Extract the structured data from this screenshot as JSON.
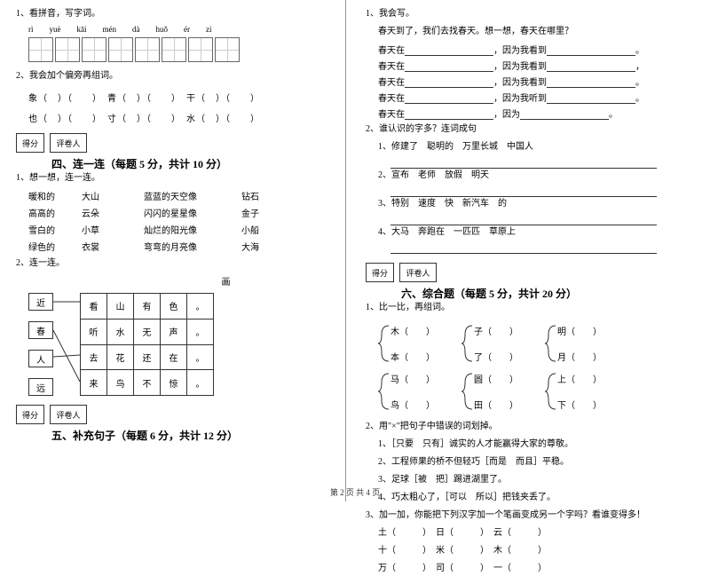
{
  "left": {
    "q1": "1、看拼音，写字词。",
    "pinyin": [
      "rì",
      "yuè",
      "kāi",
      "mén",
      "dà",
      "huǒ",
      "ér",
      "zi"
    ],
    "q2": "2、我会加个偏旁再组词。",
    "radicals_row1": "象（　）（　　）　青（　）（　　）　干（　）（　　）",
    "radicals_row2": "也（　）（　　）　寸（　）（　　）　水（　）（　　）",
    "score_label1": "得分",
    "score_label2": "评卷人",
    "section4": "四、连一连（每题 5 分，共计 10 分）",
    "s4q1": "1、想一想，连一连。",
    "link_rows": [
      [
        "暖和的",
        "大山",
        "蓝蓝的天空像",
        "钻石"
      ],
      [
        "高高的",
        "云朵",
        "闪闪的星星像",
        "金子"
      ],
      [
        "雪白的",
        "小草",
        "灿烂的阳光像",
        "小船"
      ],
      [
        "绿色的",
        "衣裳",
        "弯弯的月亮像",
        "大海"
      ]
    ],
    "s4q2": "2、连一连。",
    "hua": "画",
    "left_boxes": [
      "近",
      "春",
      "人",
      "远"
    ],
    "grid": [
      [
        "看",
        "山",
        "有",
        "色",
        "。"
      ],
      [
        "听",
        "水",
        "无",
        "声",
        "。"
      ],
      [
        "去",
        "花",
        "还",
        "在",
        "。"
      ],
      [
        "来",
        "鸟",
        "不",
        "惊",
        "。"
      ]
    ],
    "section5": "五、补充句子（每题 6 分，共计 12 分）"
  },
  "right": {
    "q1": "1、我会写。",
    "spring_intro": "春天到了，我们去找春天。想一想，春天在哪里？",
    "spring_lines": [
      [
        "春天在",
        "，因为我看到",
        "。"
      ],
      [
        "春天在",
        "，因为我看到",
        "，"
      ],
      [
        "春天在",
        "，因为我看到",
        "。"
      ],
      [
        "春天在",
        "，因为我听到",
        "。"
      ],
      [
        "春天在",
        "，因为",
        "。"
      ]
    ],
    "q2": "2、谁认识的字多？连词成句",
    "sub1": "1、修建了　聪明的　万里长城　中国人",
    "sub2": "2、宣布　老师　放假　明天",
    "sub3": "3、特别　速度　快　新汽车　的",
    "sub4": "4、大马　奔跑在　一匹匹　草原上",
    "score_label1": "得分",
    "score_label2": "评卷人",
    "section6": "六、综合题（每题 5 分，共计 20 分）",
    "s6q1": "1、比一比，再组词。",
    "brackets1": [
      [
        "木（　　）",
        "本（　　）"
      ],
      [
        "子（　　）",
        "了（　　）"
      ],
      [
        "明（　　）",
        "月（　　）"
      ]
    ],
    "brackets2": [
      [
        "马（　　）",
        "鸟（　　）"
      ],
      [
        "圆（　　）",
        "田（　　）"
      ],
      [
        "上（　　）",
        "下（　　）"
      ]
    ],
    "s6q2": "2、用\"×\"把句子中错误的词划掉。",
    "q2_lines": [
      "1、［只要　只有］诚实的人才能赢得大家的尊敬。",
      "2、工程师果的桥不但轻巧［而是　而且］平稳。",
      "3、足球［被　把］踢进湖里了。",
      "4、巧太粗心了，［可以　所以］把钱夹丢了。"
    ],
    "s6q3": "3、加一加，你能把下列汉字加一个笔画变成另一个字吗？看谁变得多！",
    "q3_lines": [
      "土（　　　）　日（　　　）　云（　　　）",
      "十（　　　）　米（　　　）　木（　　　）",
      "万（　　　）　司（　　　）　一（　　　）"
    ]
  },
  "footer": "第 2 页 共 4 页"
}
